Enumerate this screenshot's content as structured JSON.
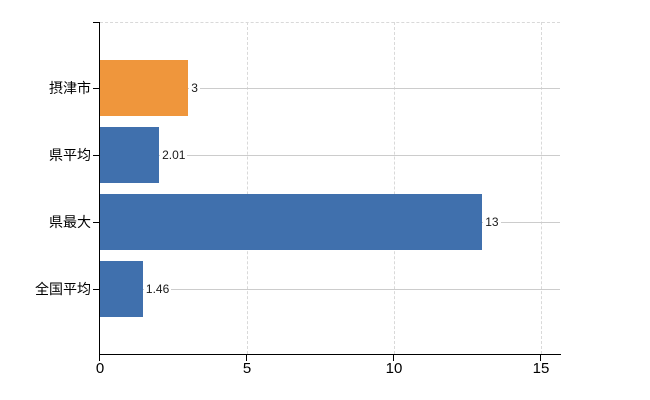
{
  "chart_data": {
    "type": "bar",
    "orientation": "horizontal",
    "title": "",
    "xlabel": "",
    "ylabel": "",
    "categories": [
      "摂津市",
      "県平均",
      "県最大",
      "全国平均"
    ],
    "values": [
      3,
      2.01,
      13,
      1.46
    ],
    "value_labels": [
      "3",
      "2.01",
      "13",
      "1.46"
    ],
    "series": [
      {
        "name": "",
        "values": [
          3,
          2.01,
          13,
          1.46
        ],
        "colors": [
          "#ef963c",
          "#4070ad",
          "#4070ad",
          "#4070ad"
        ]
      }
    ],
    "xlim": [
      0,
      15.7
    ],
    "x_ticks": [
      0,
      5,
      10,
      15
    ],
    "x_tick_labels": [
      "0",
      "5",
      "10",
      "15"
    ],
    "grid": "vertical-dashed",
    "legend": "none",
    "colors": {
      "highlight_bar": "#ef963c",
      "default_bar": "#4070ad",
      "axis": "#000000",
      "gridline": "#d9d9d9",
      "row_leader_line": "#cccccc",
      "value_text": "#1a1a1a",
      "category_text": "#000000"
    }
  }
}
